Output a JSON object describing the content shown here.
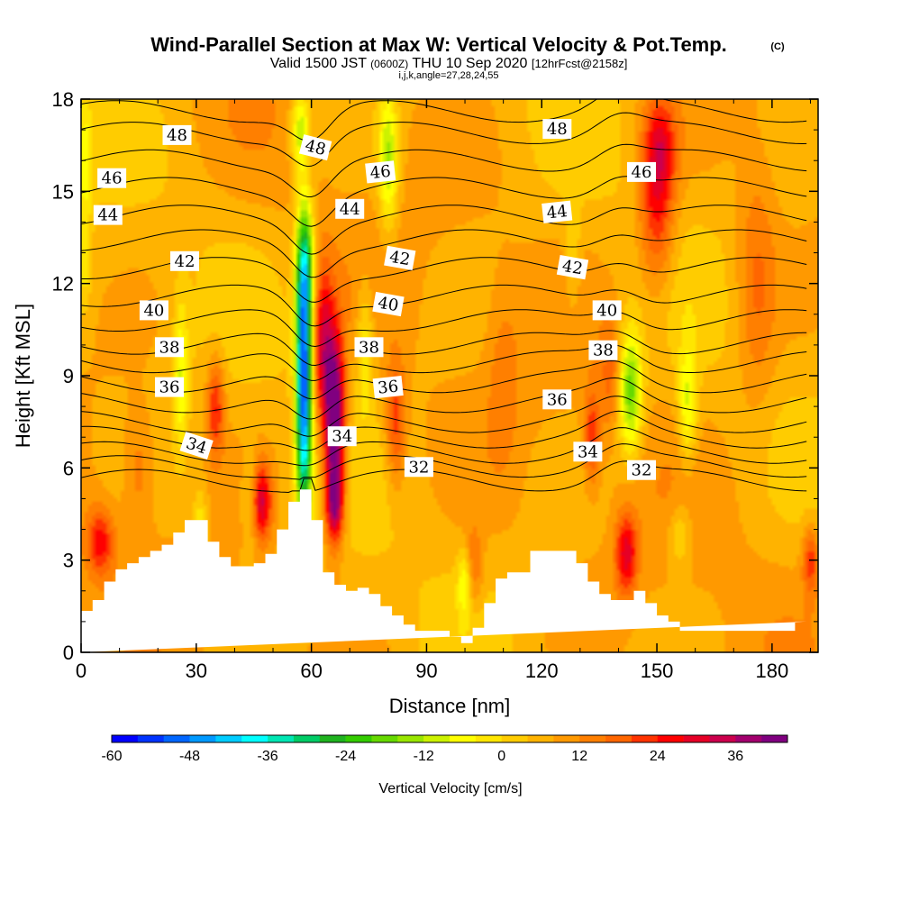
{
  "header": {
    "title": "Wind-Parallel Section at Max W: Vertical Velocity & Pot.Temp.",
    "title_unit": "(C)",
    "valid_prefix": "Valid 1500 JST",
    "valid_z": "(0600Z)",
    "valid_date": "THU 10 Sep 2020",
    "valid_fcst": "[12hrFcst@2158z]",
    "indices": "i,j,k,angle=27,28,24,55"
  },
  "colors": {
    "terrain": "#ffffff",
    "contour_line": "#000000",
    "frame": "#000000",
    "background_field": "#f6cc10"
  },
  "chart_data": {
    "type": "heatmap",
    "title": "Wind-Parallel Section at Max W: Vertical Velocity & Pot.Temp.",
    "xlabel": "Distance [nm]",
    "ylabel": "Height [Kft MSL]",
    "xlim": [
      0,
      192
    ],
    "ylim": [
      0,
      18
    ],
    "xticks": [
      0,
      30,
      60,
      90,
      120,
      150,
      180
    ],
    "yticks": [
      0,
      3,
      6,
      9,
      12,
      15,
      18
    ],
    "colorbar": {
      "label": "Vertical Velocity [cm/s]",
      "min": -60,
      "max": 42,
      "step": 4,
      "tick_values": [
        -60,
        -48,
        -36,
        -24,
        -12,
        0,
        12,
        24,
        36
      ],
      "colors": [
        "#0000ff",
        "#0033ff",
        "#0066ff",
        "#0099ff",
        "#00ccff",
        "#00ffff",
        "#00e6b3",
        "#00cc66",
        "#1fb31f",
        "#33cc00",
        "#66d900",
        "#99e600",
        "#ccf200",
        "#ffff00",
        "#ffe600",
        "#ffcc00",
        "#ffb300",
        "#ff9900",
        "#ff7f00",
        "#ff6600",
        "#ff3300",
        "#ff0000",
        "#e60026",
        "#cc004d",
        "#a3006e",
        "#800080"
      ]
    },
    "terrain_profile": {
      "x": [
        0,
        3,
        3,
        6,
        6,
        9,
        9,
        12,
        12,
        15,
        15,
        18,
        18,
        21,
        21,
        24,
        24,
        27,
        27,
        33,
        33,
        36,
        36,
        39,
        39,
        42,
        42,
        45,
        45,
        48,
        48,
        51,
        51,
        54,
        54,
        57,
        57,
        60,
        60,
        63,
        63,
        66,
        66,
        69,
        69,
        72,
        72,
        75,
        75,
        78,
        78,
        81,
        81,
        84,
        84,
        87,
        87,
        90,
        90,
        93,
        93,
        96,
        96,
        99,
        99,
        102,
        102,
        105,
        105,
        108,
        108,
        111,
        111,
        114,
        114,
        117,
        117,
        120,
        120,
        123,
        123,
        126,
        126,
        129,
        129,
        132,
        132,
        135,
        135,
        138,
        138,
        141,
        141,
        144,
        144,
        147,
        147,
        150,
        150,
        153,
        153,
        156,
        156,
        159,
        159,
        162,
        162,
        165,
        165,
        168,
        168,
        171,
        171,
        174,
        174,
        177,
        177,
        180,
        180,
        183,
        183,
        186,
        186,
        189,
        189,
        192
      ],
      "y": [
        1.35,
        1.35,
        1.7,
        1.7,
        2.3,
        2.3,
        2.7,
        2.7,
        2.9,
        2.9,
        3.1,
        3.1,
        3.3,
        3.3,
        3.5,
        3.5,
        3.9,
        3.9,
        4.3,
        4.3,
        3.6,
        3.6,
        3.1,
        3.1,
        2.8,
        2.8,
        2.8,
        2.8,
        2.9,
        2.9,
        3.2,
        3.2,
        4.0,
        4.0,
        4.9,
        4.9,
        5.3,
        5.3,
        4.3,
        4.3,
        2.6,
        2.6,
        2.2,
        2.2,
        2.0,
        2.0,
        2.1,
        2.1,
        1.9,
        1.9,
        1.5,
        1.5,
        1.2,
        1.2,
        0.9,
        0.9,
        0.7,
        0.7,
        0.7,
        0.7,
        0.7,
        0.7,
        0.5,
        0.5,
        0.3,
        0.3,
        0.8,
        0.8,
        1.6,
        1.6,
        2.4,
        2.4,
        2.6,
        2.6,
        2.6,
        2.6,
        3.3,
        3.3,
        3.3,
        3.3,
        3.3,
        3.3,
        3.3,
        3.3,
        2.9,
        2.9,
        2.3,
        2.3,
        1.9,
        1.9,
        1.7,
        1.7,
        1.7,
        1.7,
        2.0,
        2.0,
        1.6,
        1.6,
        1.2,
        1.2,
        1.0,
        1.0,
        0.7,
        0.7,
        0.7,
        0.7,
        0.7,
        0.7,
        0.7,
        0.7,
        0.7,
        0.7,
        0.7,
        0.7,
        0.7,
        0.7,
        0.7,
        0.7,
        0.7,
        0.7,
        0.7,
        0.7,
        1.0,
        1.0,
        1.0
      ]
    },
    "velocity_features": [
      {
        "x": 58,
        "z": 8.8,
        "sx": 2.0,
        "sz": 4.5,
        "w": -58
      },
      {
        "x": 58.5,
        "z": 12.5,
        "sx": 2.5,
        "sz": 2.0,
        "w": -22
      },
      {
        "x": 66,
        "z": 7.5,
        "sx": 2.6,
        "sz": 2.8,
        "w": 44
      },
      {
        "x": 63,
        "z": 10.0,
        "sx": 2.6,
        "sz": 2.6,
        "w": 22
      },
      {
        "x": 66,
        "z": 4.8,
        "sx": 2.2,
        "sz": 1.2,
        "w": 26
      },
      {
        "x": 150,
        "z": 14.7,
        "sx": 4.5,
        "sz": 2.8,
        "w": 20
      },
      {
        "x": 151,
        "z": 16.5,
        "sx": 4.0,
        "sz": 1.5,
        "w": 12
      },
      {
        "x": 143,
        "z": 8.5,
        "sx": 3.2,
        "sz": 2.0,
        "w": -26
      },
      {
        "x": 158,
        "z": 8.0,
        "sx": 2.5,
        "sz": 2.0,
        "w": -16
      },
      {
        "x": 156,
        "z": 3.8,
        "sx": 3.0,
        "sz": 1.0,
        "w": -10
      },
      {
        "x": 138,
        "z": 9.0,
        "sx": 3.0,
        "sz": 1.8,
        "w": 10
      },
      {
        "x": 133,
        "z": 7.0,
        "sx": 2.0,
        "sz": 1.5,
        "w": 16
      },
      {
        "x": 142,
        "z": 3.2,
        "sx": 2.8,
        "sz": 1.3,
        "w": 22
      },
      {
        "x": 47,
        "z": 4.9,
        "sx": 2.6,
        "sz": 1.2,
        "w": 24
      },
      {
        "x": 35,
        "z": 8.0,
        "sx": 2.2,
        "sz": 1.6,
        "w": 18
      },
      {
        "x": 26,
        "z": 9.0,
        "sx": 2.0,
        "sz": 2.5,
        "w": -14
      },
      {
        "x": 31,
        "z": 4.0,
        "sx": 2.0,
        "sz": 1.3,
        "w": -12
      },
      {
        "x": 44,
        "z": 5.0,
        "sx": 2.0,
        "sz": 1.5,
        "w": -10
      },
      {
        "x": 80,
        "z": 16.0,
        "sx": 2.5,
        "sz": 2.2,
        "w": -20
      },
      {
        "x": 74,
        "z": 10.0,
        "sx": 2.2,
        "sz": 2.2,
        "w": -12
      },
      {
        "x": 82,
        "z": 7.5,
        "sx": 2.5,
        "sz": 2.0,
        "w": 16
      },
      {
        "x": 57,
        "z": 17.0,
        "sx": 2.5,
        "sz": 1.3,
        "w": -18
      },
      {
        "x": 100,
        "z": 2.3,
        "sx": 1.8,
        "sz": 1.1,
        "w": -16
      },
      {
        "x": 102,
        "z": 2.7,
        "sx": 2.5,
        "sz": 1.3,
        "w": 12
      },
      {
        "x": 5,
        "z": 3.6,
        "sx": 3.5,
        "sz": 1.1,
        "w": 18
      },
      {
        "x": 190,
        "z": 3.0,
        "sx": 2.0,
        "sz": 1.1,
        "w": 16
      },
      {
        "x": 1,
        "z": 16.0,
        "sx": 2.0,
        "sz": 2.0,
        "w": -12
      },
      {
        "x": 1,
        "z": 12.5,
        "sx": 1.5,
        "sz": 1.5,
        "w": -8
      },
      {
        "x": 110,
        "z": 9.0,
        "sx": 4.0,
        "sz": 3.0,
        "w": 6
      },
      {
        "x": 128,
        "z": 13.0,
        "sx": 2.0,
        "sz": 2.0,
        "w": -8
      },
      {
        "x": 176,
        "z": 12.0,
        "sx": 5.0,
        "sz": 4.0,
        "w": 10
      },
      {
        "x": 15,
        "z": 6.0,
        "sx": 4.0,
        "sz": 2.0,
        "w": 8
      }
    ],
    "theta_contours": [
      {
        "value": 32,
        "base": 5.6
      },
      {
        "value": 33,
        "base": 6.05
      },
      {
        "value": 34,
        "base": 6.5
      },
      {
        "value": 35,
        "base": 7.0
      },
      {
        "value": 36,
        "base": 7.5
      },
      {
        "value": 37,
        "base": 8.15
      },
      {
        "value": 38,
        "base": 8.8
      },
      {
        "value": 39,
        "base": 9.45
      },
      {
        "value": 40,
        "base": 10.05
      },
      {
        "value": 41,
        "base": 10.8
      },
      {
        "value": 42,
        "base": 11.6
      },
      {
        "value": 43,
        "base": 12.5
      },
      {
        "value": 44,
        "base": 13.4
      },
      {
        "value": 45,
        "base": 14.2
      },
      {
        "value": 46,
        "base": 15.1
      },
      {
        "value": 47,
        "base": 16.0
      },
      {
        "value": 48,
        "base": 16.9
      },
      {
        "value": 49,
        "base": 17.6
      }
    ],
    "contour_labels": [
      {
        "text": "48",
        "x": 25,
        "z": 16.8,
        "angle": 0
      },
      {
        "text": "48",
        "x": 61,
        "z": 16.4,
        "angle": 14
      },
      {
        "text": "48",
        "x": 124,
        "z": 17.0,
        "angle": 0
      },
      {
        "text": "46",
        "x": 8,
        "z": 15.4,
        "angle": 0
      },
      {
        "text": "46",
        "x": 78,
        "z": 15.6,
        "angle": -6
      },
      {
        "text": "46",
        "x": 146,
        "z": 15.6,
        "angle": 0
      },
      {
        "text": "44",
        "x": 7,
        "z": 14.2,
        "angle": 0
      },
      {
        "text": "44",
        "x": 70,
        "z": 14.4,
        "angle": 0
      },
      {
        "text": "44",
        "x": 124,
        "z": 14.3,
        "angle": -6
      },
      {
        "text": "42",
        "x": 27,
        "z": 12.7,
        "angle": 0
      },
      {
        "text": "42",
        "x": 83,
        "z": 12.8,
        "angle": 10
      },
      {
        "text": "42",
        "x": 128,
        "z": 12.5,
        "angle": 10
      },
      {
        "text": "40",
        "x": 19,
        "z": 11.1,
        "angle": 0
      },
      {
        "text": "40",
        "x": 80,
        "z": 11.3,
        "angle": 10
      },
      {
        "text": "40",
        "x": 137,
        "z": 11.1,
        "angle": 0
      },
      {
        "text": "38",
        "x": 23,
        "z": 9.9,
        "angle": 0
      },
      {
        "text": "38",
        "x": 75,
        "z": 9.9,
        "angle": 0
      },
      {
        "text": "38",
        "x": 136,
        "z": 9.8,
        "angle": 0
      },
      {
        "text": "36",
        "x": 23,
        "z": 8.6,
        "angle": 0
      },
      {
        "text": "36",
        "x": 80,
        "z": 8.6,
        "angle": -6
      },
      {
        "text": "36",
        "x": 124,
        "z": 8.2,
        "angle": 0
      },
      {
        "text": "34",
        "x": 30,
        "z": 6.7,
        "angle": 18
      },
      {
        "text": "34",
        "x": 68,
        "z": 7.0,
        "angle": 0
      },
      {
        "text": "34",
        "x": 132,
        "z": 6.5,
        "angle": 0
      },
      {
        "text": "32",
        "x": 88,
        "z": 6.0,
        "angle": 0
      },
      {
        "text": "32",
        "x": 146,
        "z": 5.9,
        "angle": 0
      }
    ]
  }
}
